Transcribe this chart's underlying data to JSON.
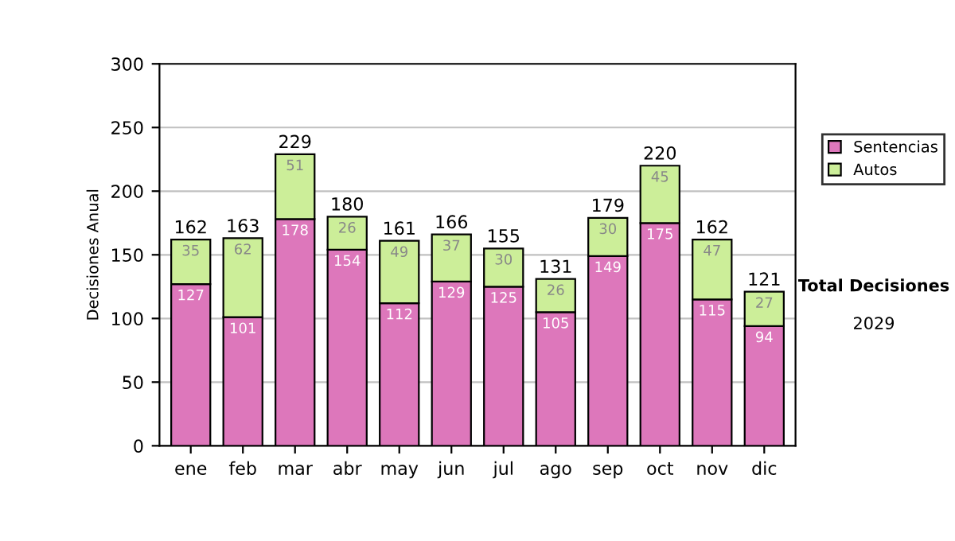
{
  "chart_data": {
    "type": "bar",
    "stacked": true,
    "ylabel": "Decisiones Anual",
    "categories": [
      "ene",
      "feb",
      "mar",
      "abr",
      "may",
      "jun",
      "jul",
      "ago",
      "sep",
      "oct",
      "nov",
      "dic"
    ],
    "series": [
      {
        "name": "Sentencias",
        "color": "#dd77bb",
        "values": [
          127,
          101,
          178,
          154,
          112,
          129,
          125,
          105,
          149,
          175,
          115,
          94
        ]
      },
      {
        "name": "Autos",
        "color": "#ccee99",
        "values": [
          35,
          62,
          51,
          26,
          49,
          37,
          30,
          26,
          30,
          45,
          47,
          27
        ]
      }
    ],
    "totals": [
      "162",
      "163",
      "229",
      "180",
      "161",
      "166",
      "155",
      "131",
      "179",
      "220",
      "162",
      "121"
    ],
    "data_labels": true,
    "ylim": [
      0,
      300
    ],
    "yticks": [
      0,
      50,
      100,
      150,
      200,
      250,
      300
    ],
    "grid": "y",
    "legend": "right",
    "annotations": [
      "Total Decisiones",
      "2029"
    ]
  }
}
